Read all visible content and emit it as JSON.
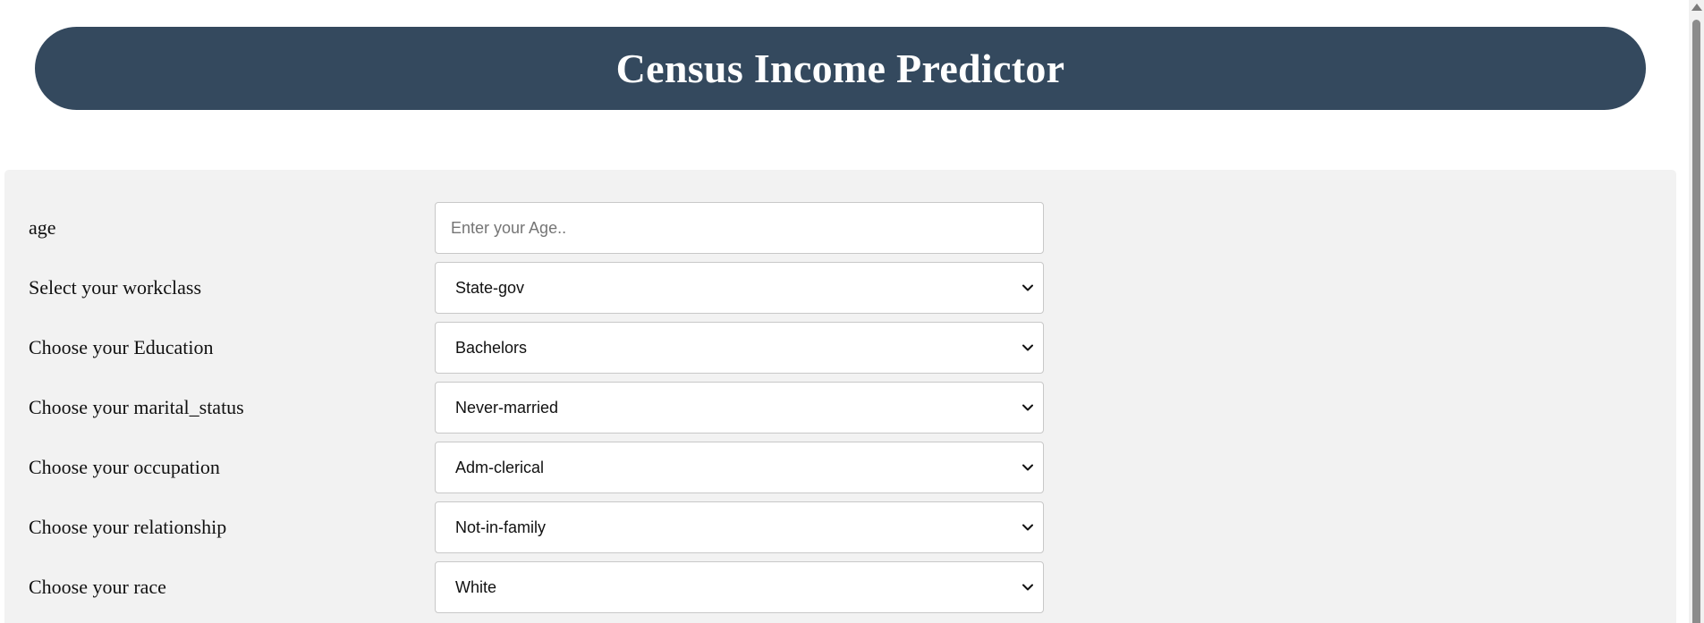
{
  "header": {
    "title": "Census Income Predictor"
  },
  "form": {
    "age": {
      "label": "age",
      "placeholder": "Enter your Age..",
      "value": ""
    },
    "workclass": {
      "label": "Select your workclass",
      "selected": "State-gov"
    },
    "education": {
      "label": "Choose your Education",
      "selected": "Bachelors"
    },
    "marital_status": {
      "label": "Choose your marital_status",
      "selected": "Never-married"
    },
    "occupation": {
      "label": "Choose your occupation",
      "selected": "Adm-clerical"
    },
    "relationship": {
      "label": "Choose your relationship",
      "selected": "Not-in-family"
    },
    "race": {
      "label": "Choose your race",
      "selected": "White"
    }
  },
  "colors": {
    "header_bg": "#34495e",
    "panel_bg": "#f2f2f2"
  },
  "icons": {
    "select_arrow": "chevron-down-icon"
  }
}
